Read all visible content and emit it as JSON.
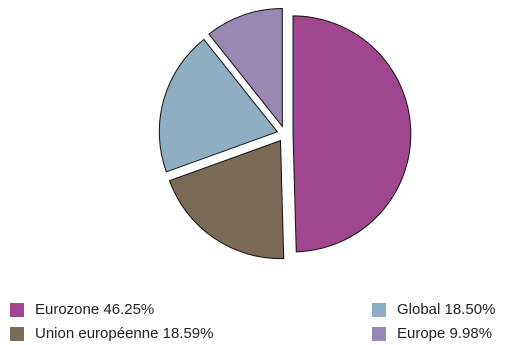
{
  "chart_data": {
    "type": "pie",
    "title": "",
    "legend_position": "bottom",
    "slices": [
      {
        "label": "Eurozone",
        "value": 46.25,
        "color": "#a0468f"
      },
      {
        "label": "Union européenne",
        "value": 18.59,
        "color": "#7a6b57"
      },
      {
        "label": "Global",
        "value": 18.5,
        "color": "#8eaec4"
      },
      {
        "label": "Europe",
        "value": 9.98,
        "color": "#9987b4"
      }
    ],
    "legend": [
      {
        "text": "Eurozone 46.25%",
        "color": "#a0468f"
      },
      {
        "text": "Union européenne 18.59%",
        "color": "#7a6b57"
      },
      {
        "text": "Global 18.50%",
        "color": "#8eaec4"
      },
      {
        "text": "Europe 9.98%",
        "color": "#9987b4"
      }
    ]
  }
}
